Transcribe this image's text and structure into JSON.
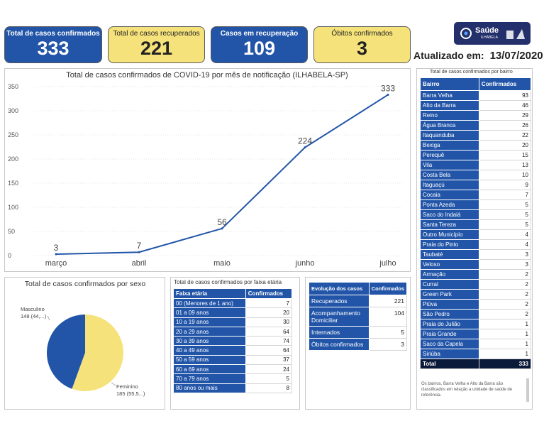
{
  "kpis": [
    {
      "label": "Total de casos confirmados",
      "value": "333",
      "color": "#2255a8"
    },
    {
      "label": "Total de casos recuperados",
      "value": "221",
      "color": "#f6e27a"
    },
    {
      "label": "Casos em recuperação",
      "value": "109",
      "color": "#2255a8"
    },
    {
      "label": "Óbitos confirmados",
      "value": "3",
      "color": "#f6e27a"
    }
  ],
  "logo": {
    "text": "Saúde",
    "sub": "ILHABELA"
  },
  "updated": {
    "label": "Atualizado em:",
    "date": "13/07/2020"
  },
  "chart_data": [
    {
      "type": "line",
      "title": "Total de casos confirmados de COVID-19 por mês de notificação (ILHABELA-SP)",
      "categories": [
        "março",
        "abril",
        "maio",
        "junho",
        "julho"
      ],
      "values": [
        3,
        7,
        56,
        224,
        333
      ],
      "ylim": [
        0,
        350
      ],
      "yticks": [
        0,
        50,
        100,
        150,
        200,
        250,
        300,
        350
      ],
      "color": "#2255a8"
    },
    {
      "type": "pie",
      "title": "Total de casos confirmados por sexo",
      "slices": [
        {
          "label": "Masculino",
          "value": 148,
          "detail": "148 (44,...)",
          "color": "#2255a8"
        },
        {
          "label": "Feminino",
          "value": 185,
          "detail": "185 (55,5...)",
          "color": "#f6e27a"
        }
      ]
    }
  ],
  "faixa": {
    "title": "Total de casos confirmados por faixa etária",
    "headers": [
      "Faixa etária",
      "Confirmados"
    ],
    "rows": [
      [
        "00 (Menores de 1 ano)",
        "7"
      ],
      [
        "01 a 09 anos",
        "20"
      ],
      [
        "10 a 19 anos",
        "30"
      ],
      [
        "20 a 29 anos",
        "64"
      ],
      [
        "30 a 39 anos",
        "74"
      ],
      [
        "40 a 49 anos",
        "64"
      ],
      [
        "50 a 59 anos",
        "37"
      ],
      [
        "60 a 69 anos",
        "24"
      ],
      [
        "70 a 79 anos",
        "5"
      ],
      [
        "80 anos ou mais",
        "8"
      ]
    ]
  },
  "evolucao": {
    "headers": [
      "Evolução dos casos",
      "Confirmados"
    ],
    "rows": [
      [
        "Recuperados",
        "221"
      ],
      [
        "Acompanhamento Domiciliar",
        "104"
      ],
      [
        "Internados",
        "5"
      ],
      [
        "Óbitos confirmados",
        "3"
      ]
    ]
  },
  "bairro": {
    "title": "Total de casos confirmados por bairro",
    "headers": [
      "Bairro",
      "Confirmados"
    ],
    "rows": [
      [
        "Barra Velha",
        "93"
      ],
      [
        "Alto da Barra",
        "46"
      ],
      [
        "Reino",
        "29"
      ],
      [
        "Água Branca",
        "26"
      ],
      [
        "Itaquanduba",
        "22"
      ],
      [
        "Bexiga",
        "20"
      ],
      [
        "Perequê",
        "15"
      ],
      [
        "Vila",
        "13"
      ],
      [
        "Costa Bela",
        "10"
      ],
      [
        "Itaguaçú",
        "9"
      ],
      [
        "Cocaia",
        "7"
      ],
      [
        "Ponta Azeda",
        "5"
      ],
      [
        "Saco do Indaiá",
        "5"
      ],
      [
        "Santa Tereza",
        "5"
      ],
      [
        "Outro Município",
        "4"
      ],
      [
        "Praia do Pinto",
        "4"
      ],
      [
        "Taubaté",
        "3"
      ],
      [
        "Veloso",
        "3"
      ],
      [
        "Armação",
        "2"
      ],
      [
        "Curral",
        "2"
      ],
      [
        "Green Park",
        "2"
      ],
      [
        "Piúva",
        "2"
      ],
      [
        "São Pedro",
        "2"
      ],
      [
        "Praia do Julião",
        "1"
      ],
      [
        "Praia Grande",
        "1"
      ],
      [
        "Saco da Capela",
        "1"
      ],
      [
        "Siriúba",
        "1"
      ]
    ],
    "total_label": "Total",
    "total_value": "333",
    "note": "Os bairros, Barra Velha e Alto da Barra são classificados em relação a unidade de saúde de referência."
  }
}
